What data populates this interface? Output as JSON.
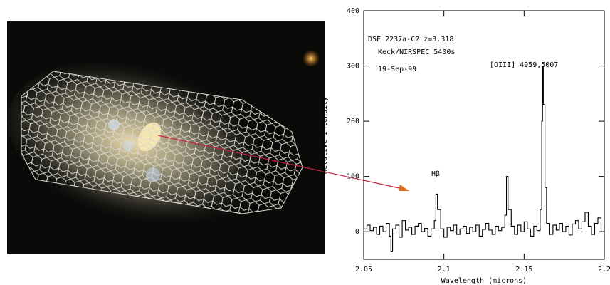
{
  "chart_data": {
    "type": "line",
    "annotations": [
      "DSF 2237a-C2 z=3.318",
      "Keck/NIRSPEC 5400s",
      "19-Sep-99",
      "[OIII] 4959,5007",
      "Hβ"
    ],
    "x_label": "Wavelength (microns)",
    "y_label": "Relative Intensity",
    "xlim": [
      2.05,
      2.2
    ],
    "xticks": [
      2.05,
      2.1,
      2.15,
      2.2
    ],
    "ylim": [
      -50,
      400
    ],
    "yticks": [
      0,
      100,
      200,
      300,
      400
    ],
    "series": [
      {
        "color": "#000000",
        "x": [
          2.05,
          2.052,
          2.054,
          2.056,
          2.058,
          2.06,
          2.062,
          2.064,
          2.066,
          2.067,
          2.068,
          2.07,
          2.072,
          2.074,
          2.076,
          2.078,
          2.08,
          2.082,
          2.084,
          2.086,
          2.088,
          2.09,
          2.092,
          2.094,
          2.095,
          2.096,
          2.098,
          2.1,
          2.102,
          2.104,
          2.106,
          2.108,
          2.11,
          2.112,
          2.114,
          2.116,
          2.118,
          2.12,
          2.122,
          2.124,
          2.126,
          2.128,
          2.13,
          2.132,
          2.134,
          2.136,
          2.138,
          2.139,
          2.14,
          2.142,
          2.144,
          2.146,
          2.148,
          2.15,
          2.152,
          2.154,
          2.156,
          2.158,
          2.16,
          2.161,
          2.1615,
          2.162,
          2.163,
          2.164,
          2.166,
          2.168,
          2.17,
          2.172,
          2.174,
          2.176,
          2.178,
          2.18,
          2.182,
          2.184,
          2.186,
          2.188,
          2.19,
          2.192,
          2.194,
          2.196,
          2.198,
          2.2
        ],
        "values": [
          5,
          12,
          2,
          8,
          -5,
          10,
          0,
          15,
          -8,
          -35,
          5,
          12,
          -10,
          20,
          3,
          8,
          -5,
          10,
          15,
          0,
          6,
          -8,
          5,
          20,
          68,
          40,
          5,
          -10,
          8,
          2,
          12,
          -5,
          5,
          10,
          -3,
          8,
          0,
          12,
          -8,
          4,
          15,
          3,
          -5,
          10,
          2,
          8,
          30,
          100,
          40,
          10,
          -5,
          12,
          0,
          18,
          5,
          -8,
          10,
          2,
          40,
          200,
          300,
          230,
          80,
          15,
          -5,
          12,
          3,
          15,
          0,
          10,
          -6,
          14,
          20,
          5,
          18,
          35,
          10,
          -5,
          15,
          25,
          0,
          10
        ]
      }
    ]
  }
}
